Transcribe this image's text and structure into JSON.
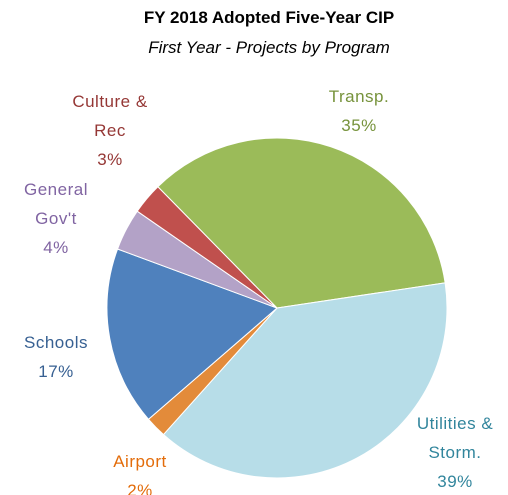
{
  "chart_data": {
    "type": "pie",
    "title": "FY 2018 Adopted Five-Year CIP",
    "subtitle": "First Year - Projects by Program",
    "categories": [
      "Transp.",
      "Utilities & Storm.",
      "Airport",
      "Schools",
      "General Gov't",
      "Culture & Rec"
    ],
    "values": [
      35,
      39,
      2,
      17,
      4,
      3
    ],
    "value_labels": [
      "35%",
      "39%",
      "2%",
      "17%",
      "4%",
      "3%"
    ],
    "colors": [
      "#9bbb59",
      "#b7dde8",
      "#e38b3a",
      "#4f81bd",
      "#b3a2c7",
      "#c0504d"
    ],
    "label_colors": [
      "#77933c",
      "#31859c",
      "#e36c0a",
      "#376092",
      "#8064a2",
      "#953735"
    ]
  }
}
